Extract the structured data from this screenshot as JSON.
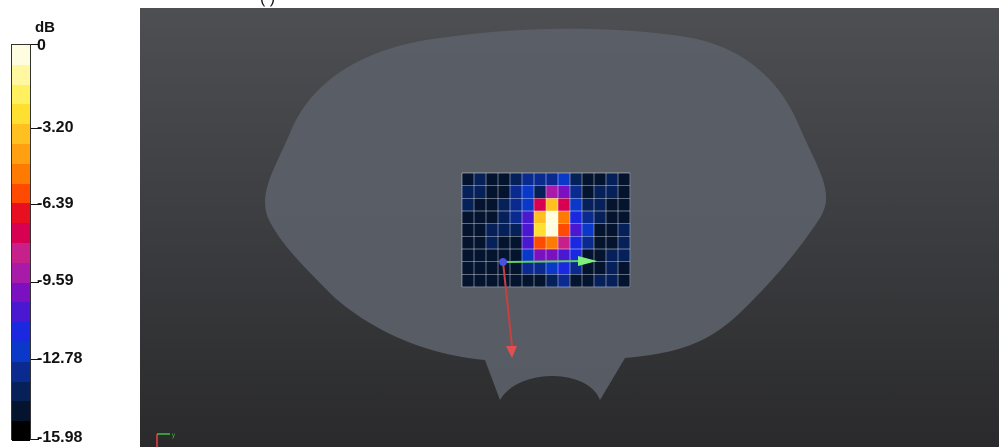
{
  "legend": {
    "unit": "dB",
    "labels": [
      "0",
      "-3.20",
      "-6.39",
      "-9.59",
      "-12.78",
      "-15.98"
    ],
    "colors": [
      "#fffde0",
      "#fff8a0",
      "#fff060",
      "#ffe030",
      "#ffc020",
      "#ffa010",
      "#ff7a00",
      "#ff4a00",
      "#e81020",
      "#d80050",
      "#c8208a",
      "#a81aa8",
      "#7a10c0",
      "#4a18d0",
      "#1a28e0",
      "#0a38c8",
      "#0a2a90",
      "#06205a",
      "#04142e",
      "#000000"
    ]
  },
  "top_caption": "(                  )",
  "axis_indicator": "y"
}
